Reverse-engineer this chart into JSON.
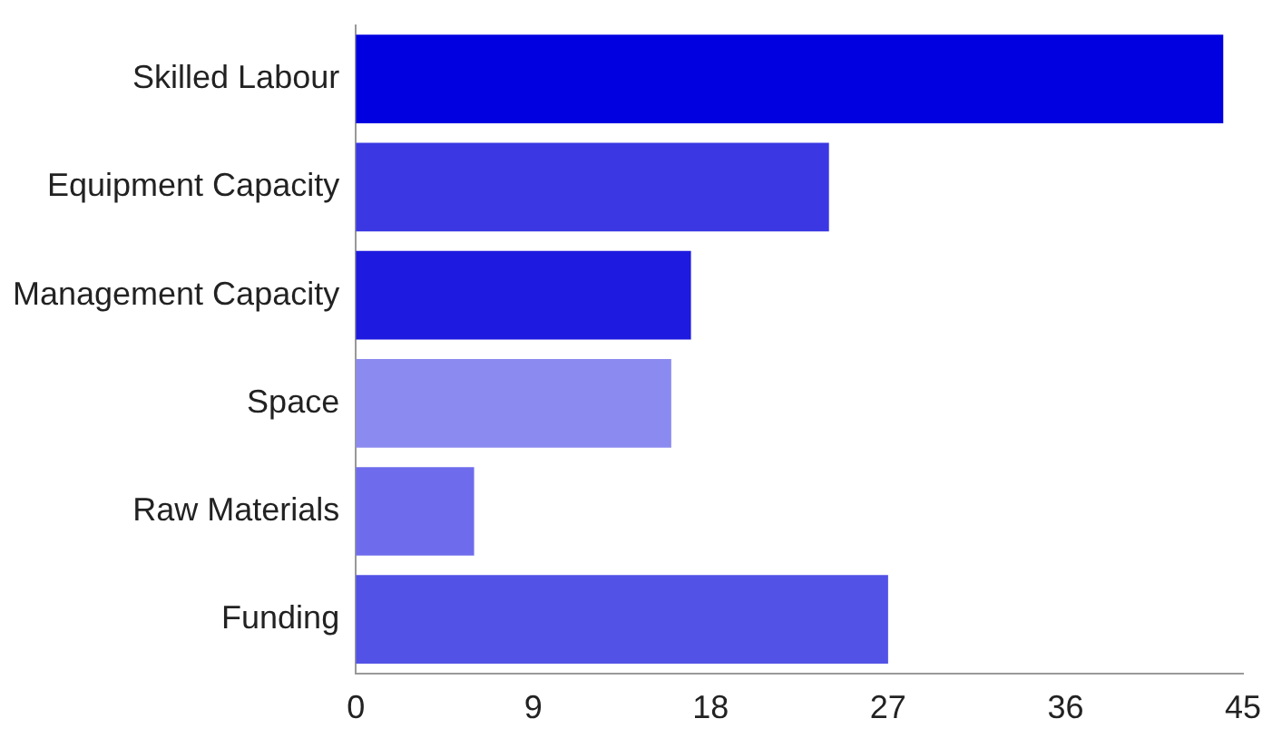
{
  "chart_data": {
    "type": "bar",
    "orientation": "horizontal",
    "categories": [
      "Skilled Labour",
      "Equipment Capacity",
      "Management Capacity",
      "Space",
      "Raw Materials",
      "Funding"
    ],
    "values": [
      44,
      24,
      17,
      16,
      6,
      27
    ],
    "colors": [
      "#0000e0",
      "#3a37e3",
      "#1e1adf",
      "#8b8af0",
      "#6e6cec",
      "#5252e6"
    ],
    "xlim": [
      0,
      45
    ],
    "xticks": [
      0,
      9,
      18,
      27,
      36,
      45
    ],
    "grid": false,
    "legend": false
  }
}
